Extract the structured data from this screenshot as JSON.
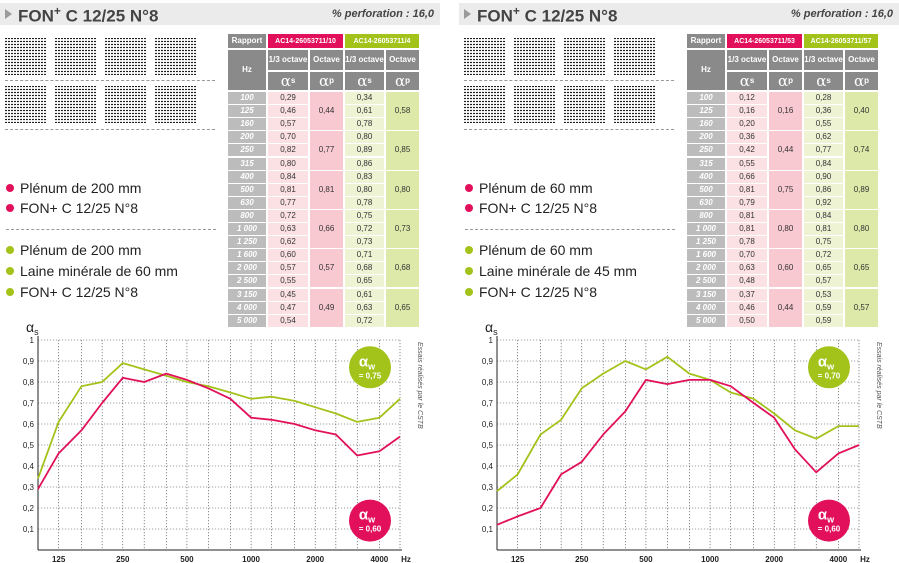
{
  "panels": [
    {
      "title_main": "FON",
      "title_sup": "+",
      "title_rest": " C 12/25 N°8",
      "perforation": "% perforation : 16,0",
      "table": {
        "rapport_label": "Rapport",
        "hz_label": "Hz",
        "ref_red": "AC14-26053711/10",
        "ref_green": "AC14-26053711/4",
        "third_octave": "1/3 octave",
        "octave": "Octave",
        "alpha_s": "αs",
        "alpha_p": "αp",
        "freqs": [
          "100",
          "125",
          "160",
          "200",
          "250",
          "315",
          "400",
          "500",
          "630",
          "800",
          "1 000",
          "1 250",
          "1 600",
          "2 000",
          "2 500",
          "3 150",
          "4 000",
          "5 000"
        ],
        "red_s": [
          "0,29",
          "0,46",
          "0,57",
          "0,70",
          "0,82",
          "0,80",
          "0,84",
          "0,81",
          "0,77",
          "0,72",
          "0,63",
          "0,62",
          "0,60",
          "0,57",
          "0,55",
          "0,45",
          "0,47",
          "0,54"
        ],
        "red_p": [
          "0,44",
          "0,77",
          "0,81",
          "0,66",
          "0,57",
          "0,49"
        ],
        "green_s": [
          "0,34",
          "0,61",
          "0,78",
          "0,80",
          "0,89",
          "0,86",
          "0,83",
          "0,80",
          "0,78",
          "0,75",
          "0,72",
          "0,73",
          "0,71",
          "0,68",
          "0,65",
          "0,61",
          "0,63",
          "0,72"
        ],
        "green_p": [
          "0,58",
          "0,85",
          "0,80",
          "0,73",
          "0,68",
          "0,65"
        ]
      },
      "legend_red": [
        "Plénum de 200 mm",
        "FON+ C 12/25 N°8"
      ],
      "legend_green": [
        "Plénum de 200 mm",
        "Laine minérale de 60 mm",
        "FON+ C 12/25 N°8"
      ],
      "alpha_w_green": "= 0,75",
      "alpha_w_red": "= 0,60"
    },
    {
      "title_main": "FON",
      "title_sup": "+",
      "title_rest": " C 12/25 N°8",
      "perforation": "% perforation : 16,0",
      "table": {
        "rapport_label": "Rapport",
        "hz_label": "Hz",
        "ref_red": "AC14-26053711/53",
        "ref_green": "AC14-26053711/57",
        "third_octave": "1/3 octave",
        "octave": "Octave",
        "alpha_s": "αs",
        "alpha_p": "αp",
        "freqs": [
          "100",
          "125",
          "160",
          "200",
          "250",
          "315",
          "400",
          "500",
          "630",
          "800",
          "1 000",
          "1 250",
          "1 600",
          "2 000",
          "2 500",
          "3 150",
          "4 000",
          "5 000"
        ],
        "red_s": [
          "0,12",
          "0,16",
          "0,20",
          "0,36",
          "0,42",
          "0,55",
          "0,66",
          "0,81",
          "0,79",
          "0,81",
          "0,81",
          "0,78",
          "0,70",
          "0,63",
          "0,48",
          "0,37",
          "0,46",
          "0,50"
        ],
        "red_p": [
          "0,16",
          "0,44",
          "0,75",
          "0,80",
          "0,60",
          "0,44"
        ],
        "green_s": [
          "0,28",
          "0,36",
          "0,55",
          "0,62",
          "0,77",
          "0,84",
          "0,90",
          "0,86",
          "0,92",
          "0,84",
          "0,81",
          "0,75",
          "0,72",
          "0,65",
          "0,57",
          "0,53",
          "0,59",
          "0,59"
        ],
        "green_p": [
          "0,40",
          "0,74",
          "0,89",
          "0,80",
          "0,65",
          "0,57"
        ]
      },
      "legend_red": [
        "Plénum de 60 mm",
        "FON+ C 12/25 N°8"
      ],
      "legend_green": [
        "Plénum de 60 mm",
        "Laine minérale de 45 mm",
        "FON+ C 12/25 N°8"
      ],
      "alpha_w_green": "= 0,70",
      "alpha_w_red": "= 0,60"
    }
  ],
  "chart_data": [
    {
      "type": "line",
      "ylabel": "αs",
      "xlabel": "Hz",
      "x_tick_labels": [
        "125",
        "250",
        "500",
        "1000",
        "2000",
        "4000"
      ],
      "y_tick_labels": [
        "0,1",
        "0,2",
        "0,3",
        "0,4",
        "0,5",
        "0,6",
        "0,7",
        "0,8",
        "0,9",
        "1"
      ],
      "ylim": [
        0,
        1
      ],
      "x": [
        100,
        125,
        160,
        200,
        250,
        315,
        400,
        500,
        630,
        800,
        1000,
        1250,
        1600,
        2000,
        2500,
        3150,
        4000,
        5000
      ],
      "series": [
        {
          "color": "#a3c21a",
          "values": [
            0.34,
            0.61,
            0.78,
            0.8,
            0.89,
            0.86,
            0.83,
            0.8,
            0.78,
            0.75,
            0.72,
            0.73,
            0.71,
            0.68,
            0.65,
            0.61,
            0.63,
            0.72
          ]
        },
        {
          "color": "#e2105a",
          "values": [
            0.29,
            0.46,
            0.57,
            0.7,
            0.82,
            0.8,
            0.84,
            0.81,
            0.77,
            0.72,
            0.63,
            0.62,
            0.6,
            0.57,
            0.55,
            0.45,
            0.47,
            0.54
          ]
        }
      ],
      "side_note": "Essais réalisés par le CSTB",
      "badges": [
        {
          "symbol": "αw",
          "value": "= 0,75",
          "color": "#a3c21a"
        },
        {
          "symbol": "αw",
          "value": "= 0,60",
          "color": "#e2105a"
        }
      ]
    },
    {
      "type": "line",
      "ylabel": "αs",
      "xlabel": "Hz",
      "x_tick_labels": [
        "125",
        "250",
        "500",
        "1000",
        "2000",
        "4000"
      ],
      "y_tick_labels": [
        "0,1",
        "0,2",
        "0,3",
        "0,4",
        "0,5",
        "0,6",
        "0,7",
        "0,8",
        "0,9",
        "1"
      ],
      "ylim": [
        0,
        1
      ],
      "x": [
        100,
        125,
        160,
        200,
        250,
        315,
        400,
        500,
        630,
        800,
        1000,
        1250,
        1600,
        2000,
        2500,
        3150,
        4000,
        5000
      ],
      "series": [
        {
          "color": "#a3c21a",
          "values": [
            0.28,
            0.36,
            0.55,
            0.62,
            0.77,
            0.84,
            0.9,
            0.86,
            0.92,
            0.84,
            0.81,
            0.75,
            0.72,
            0.65,
            0.57,
            0.53,
            0.59,
            0.59
          ]
        },
        {
          "color": "#e2105a",
          "values": [
            0.12,
            0.16,
            0.2,
            0.36,
            0.42,
            0.55,
            0.66,
            0.81,
            0.79,
            0.81,
            0.81,
            0.78,
            0.7,
            0.63,
            0.48,
            0.37,
            0.46,
            0.5
          ]
        }
      ],
      "side_note": "Essais réalisés par le CSTB",
      "badges": [
        {
          "symbol": "αw",
          "value": "= 0,70",
          "color": "#a3c21a"
        },
        {
          "symbol": "αw",
          "value": "= 0,60",
          "color": "#e2105a"
        }
      ]
    }
  ],
  "colors": {
    "red": "#e2105a",
    "green": "#a3c21a",
    "grey": "#8a8a8a"
  }
}
